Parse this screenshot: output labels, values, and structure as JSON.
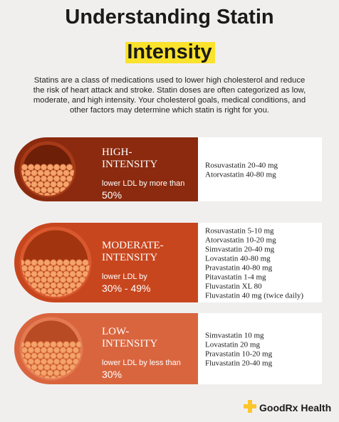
{
  "header": {
    "title_line1": "Understanding Statin",
    "title_line2": "Intensity"
  },
  "intro": [
    "Statins are a class of medications used to lower high cholesterol and reduce",
    "the risk of heart attack and stroke. Statin doses are often categorized as low,",
    "moderate, and high intensity. Your cholesterol goals, medical conditions, and",
    "other factors may determine which statin is right for you."
  ],
  "levels": [
    {
      "title": [
        "HIGH-",
        "INTENSITY"
      ],
      "description": "lower LDL by more than",
      "amount": "50%",
      "drugs": [
        "Rosuvastatin 20-40 mg",
        "Atorvastatin 40-80 mg"
      ]
    },
    {
      "title": [
        "MODERATE-",
        "INTENSITY"
      ],
      "description": "lower LDL by",
      "amount": "30% - 49%",
      "drugs": [
        "Rosuvastatin 5-10 mg",
        "Atorvastatin 10-20 mg",
        "Simvastatin 20-40 mg",
        "Lovastatin 40-80 mg",
        "Pravastatin 40-80 mg",
        "Pitavastatin 1-4 mg",
        "Fluvastatin XL 80",
        "Fluvastatin 40 mg (twice daily)"
      ]
    },
    {
      "title": [
        "LOW-",
        "INTENSITY"
      ],
      "description": "lower LDL by less than",
      "amount": "30%",
      "drugs": [
        "Simvastatin 10 mg",
        "Lovastatin 20 mg",
        "Pravastatin 10-20 mg",
        "Fluvastatin 20-40 mg"
      ]
    }
  ],
  "footer": {
    "brand": "GoodRx Health"
  }
}
